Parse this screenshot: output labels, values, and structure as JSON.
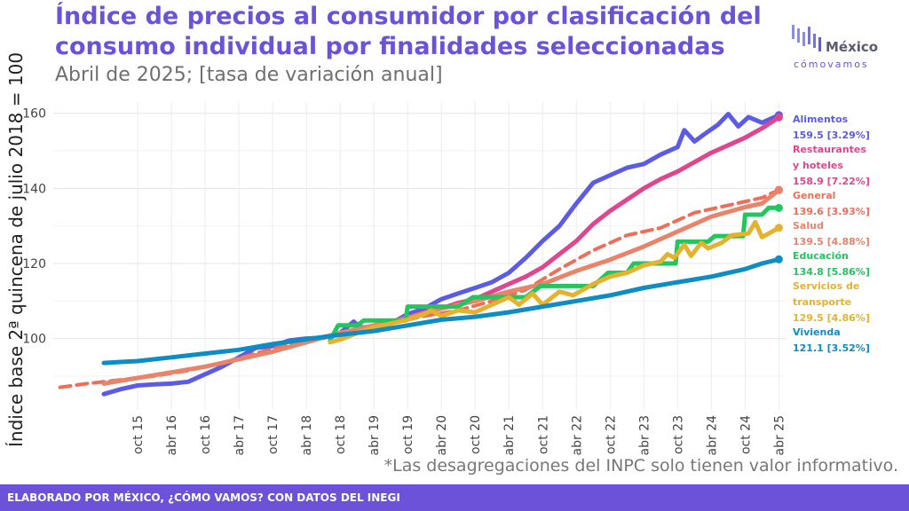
{
  "title": "Índice de precios al consumidor por clasificación del consumo individual por finalidades seleccionadas",
  "subtitle": "Abril de 2025; [tasa de variación anual]",
  "note": "*Las desagregaciones del INPC solo tienen valor informativo.",
  "footer": "ELABORADO POR MÉXICO, ¿CÓMO VAMOS? CON DATOS DEL INEGI",
  "logo": {
    "line1": "México",
    "line2": "cómovamos"
  },
  "chart_data": {
    "type": "line",
    "ylabel": "Índice base 2ª quincena de julio 2018 = 100",
    "ylim": [
      81,
      163
    ],
    "yticks": [
      100,
      120,
      140,
      160
    ],
    "x_range": [
      2014.5,
      2025.35
    ],
    "xticks": [
      {
        "label": "oct 15",
        "x": 2015.75
      },
      {
        "label": "abr 16",
        "x": 2016.25
      },
      {
        "label": "oct 16",
        "x": 2016.75
      },
      {
        "label": "abr 17",
        "x": 2017.25
      },
      {
        "label": "oct 17",
        "x": 2017.75
      },
      {
        "label": "abr 18",
        "x": 2018.25
      },
      {
        "label": "oct 18",
        "x": 2018.75
      },
      {
        "label": "abr 19",
        "x": 2019.25
      },
      {
        "label": "oct 19",
        "x": 2019.75
      },
      {
        "label": "abr 20",
        "x": 2020.25
      },
      {
        "label": "oct 20",
        "x": 2020.75
      },
      {
        "label": "abr 21",
        "x": 2021.25
      },
      {
        "label": "oct 21",
        "x": 2021.75
      },
      {
        "label": "abr 22",
        "x": 2022.25
      },
      {
        "label": "oct 22",
        "x": 2022.75
      },
      {
        "label": "abr 23",
        "x": 2023.25
      },
      {
        "label": "oct 23",
        "x": 2023.75
      },
      {
        "label": "abr 24",
        "x": 2024.25
      },
      {
        "label": "oct 24",
        "x": 2024.75
      },
      {
        "label": "abr 25",
        "x": 2025.25
      }
    ],
    "grid": true,
    "legend": "right",
    "series": [
      {
        "name": "Alimentos",
        "name_lines": [
          "Alimentos"
        ],
        "value_label": "159.5 [3.29%]",
        "color": "#5B5BE6",
        "dashed": false,
        "width": 5,
        "points": [
          [
            2015.25,
            85.2
          ],
          [
            2015.5,
            86.5
          ],
          [
            2015.75,
            87.5
          ],
          [
            2016.0,
            87.8
          ],
          [
            2016.25,
            88.0
          ],
          [
            2016.5,
            88.5
          ],
          [
            2016.75,
            90.5
          ],
          [
            2017.0,
            92.5
          ],
          [
            2017.25,
            95.0
          ],
          [
            2017.5,
            97.5
          ],
          [
            2017.75,
            98.0
          ],
          [
            2018.0,
            99.5
          ],
          [
            2018.25,
            100.0
          ],
          [
            2018.5,
            100.2
          ],
          [
            2018.75,
            101.5
          ],
          [
            2018.95,
            104.5
          ],
          [
            2019.05,
            103.0
          ],
          [
            2019.25,
            103.0
          ],
          [
            2019.5,
            104.0
          ],
          [
            2019.75,
            106.5
          ],
          [
            2020.0,
            108.0
          ],
          [
            2020.25,
            110.5
          ],
          [
            2020.5,
            112.0
          ],
          [
            2020.75,
            113.5
          ],
          [
            2021.0,
            115.0
          ],
          [
            2021.25,
            117.5
          ],
          [
            2021.5,
            121.5
          ],
          [
            2021.75,
            126.0
          ],
          [
            2022.0,
            130.0
          ],
          [
            2022.25,
            136.0
          ],
          [
            2022.5,
            141.5
          ],
          [
            2022.75,
            143.5
          ],
          [
            2023.0,
            145.5
          ],
          [
            2023.25,
            146.5
          ],
          [
            2023.5,
            149.0
          ],
          [
            2023.75,
            151.0
          ],
          [
            2023.85,
            155.5
          ],
          [
            2024.0,
            152.5
          ],
          [
            2024.15,
            154.5
          ],
          [
            2024.35,
            157.0
          ],
          [
            2024.5,
            159.8
          ],
          [
            2024.65,
            156.5
          ],
          [
            2024.8,
            159.0
          ],
          [
            2025.0,
            157.5
          ],
          [
            2025.25,
            159.5
          ]
        ]
      },
      {
        "name": "Restaurantes y hoteles",
        "name_lines": [
          "Restaurantes",
          "y hoteles"
        ],
        "value_label": "158.9 [7.22%]",
        "color": "#E0468E",
        "dashed": false,
        "width": 5,
        "points": [
          [
            2018.75,
            101.0
          ],
          [
            2019.0,
            102.0
          ],
          [
            2019.25,
            103.0
          ],
          [
            2019.5,
            104.5
          ],
          [
            2019.75,
            105.5
          ],
          [
            2020.0,
            107.0
          ],
          [
            2020.25,
            108.0
          ],
          [
            2020.5,
            109.5
          ],
          [
            2020.75,
            110.5
          ],
          [
            2021.0,
            112.5
          ],
          [
            2021.25,
            114.5
          ],
          [
            2021.5,
            116.5
          ],
          [
            2021.75,
            119.0
          ],
          [
            2022.0,
            122.5
          ],
          [
            2022.25,
            126.0
          ],
          [
            2022.5,
            130.5
          ],
          [
            2022.75,
            134.0
          ],
          [
            2023.0,
            137.0
          ],
          [
            2023.25,
            140.0
          ],
          [
            2023.5,
            142.5
          ],
          [
            2023.75,
            144.5
          ],
          [
            2024.0,
            147.0
          ],
          [
            2024.25,
            149.5
          ],
          [
            2024.5,
            151.5
          ],
          [
            2024.75,
            153.5
          ],
          [
            2025.0,
            156.0
          ],
          [
            2025.25,
            158.9
          ]
        ]
      },
      {
        "name": "General",
        "name_lines": [
          "General"
        ],
        "value_label": "139.6 [3.93%]",
        "color": "#EE6E5A",
        "dashed": true,
        "width": 4,
        "points": [
          [
            2014.6,
            87.0
          ],
          [
            2015.0,
            88.0
          ],
          [
            2015.5,
            89.0
          ],
          [
            2016.0,
            90.0
          ],
          [
            2016.5,
            91.5
          ],
          [
            2017.0,
            93.5
          ],
          [
            2017.5,
            96.0
          ],
          [
            2018.0,
            98.5
          ],
          [
            2018.5,
            100.5
          ],
          [
            2019.0,
            102.5
          ],
          [
            2019.5,
            104.0
          ],
          [
            2020.0,
            106.0
          ],
          [
            2020.5,
            107.5
          ],
          [
            2021.0,
            110.0
          ],
          [
            2021.5,
            113.0
          ],
          [
            2022.0,
            118.5
          ],
          [
            2022.5,
            123.5
          ],
          [
            2023.0,
            127.5
          ],
          [
            2023.5,
            129.5
          ],
          [
            2024.0,
            133.5
          ],
          [
            2024.5,
            135.5
          ],
          [
            2025.0,
            137.5
          ],
          [
            2025.25,
            139.6
          ]
        ]
      },
      {
        "name": "Salud",
        "name_lines": [
          "Salud"
        ],
        "value_label": "139.5 [4.88%]",
        "color": "#E8846A",
        "dashed": false,
        "width": 5,
        "points": [
          [
            2015.25,
            88.0
          ],
          [
            2015.75,
            89.5
          ],
          [
            2016.25,
            91.0
          ],
          [
            2016.75,
            92.5
          ],
          [
            2017.25,
            94.5
          ],
          [
            2017.75,
            96.5
          ],
          [
            2018.25,
            99.0
          ],
          [
            2018.75,
            101.5
          ],
          [
            2019.25,
            103.5
          ],
          [
            2019.75,
            105.5
          ],
          [
            2020.25,
            108.0
          ],
          [
            2020.75,
            110.0
          ],
          [
            2021.25,
            112.5
          ],
          [
            2021.75,
            114.5
          ],
          [
            2022.25,
            118.0
          ],
          [
            2022.75,
            121.0
          ],
          [
            2023.25,
            124.5
          ],
          [
            2023.75,
            128.5
          ],
          [
            2024.25,
            132.5
          ],
          [
            2024.75,
            135.0
          ],
          [
            2025.0,
            136.0
          ],
          [
            2025.25,
            139.5
          ]
        ]
      },
      {
        "name": "Educación",
        "name_lines": [
          "Educación"
        ],
        "value_label": "134.8 [5.86%]",
        "color": "#22C55E",
        "dashed": false,
        "width": 5,
        "points": [
          [
            2018.6,
            99.5
          ],
          [
            2018.72,
            103.5
          ],
          [
            2019.0,
            103.5
          ],
          [
            2019.1,
            104.8
          ],
          [
            2019.72,
            104.8
          ],
          [
            2019.75,
            108.5
          ],
          [
            2020.5,
            108.5
          ],
          [
            2020.72,
            111.0
          ],
          [
            2021.5,
            111.0
          ],
          [
            2021.72,
            114.0
          ],
          [
            2022.5,
            114.0
          ],
          [
            2022.72,
            117.5
          ],
          [
            2023.0,
            117.5
          ],
          [
            2023.1,
            120.0
          ],
          [
            2023.72,
            120.0
          ],
          [
            2023.75,
            125.8
          ],
          [
            2024.2,
            125.8
          ],
          [
            2024.3,
            127.3
          ],
          [
            2024.72,
            127.3
          ],
          [
            2024.75,
            133.0
          ],
          [
            2025.0,
            133.0
          ],
          [
            2025.1,
            134.8
          ],
          [
            2025.25,
            134.8
          ]
        ]
      },
      {
        "name": "Servicios de transporte",
        "name_lines": [
          "Servicios de",
          "transporte"
        ],
        "value_label": "129.5 [4.86%]",
        "color": "#E5B22E",
        "dashed": false,
        "width": 5,
        "points": [
          [
            2018.6,
            99.0
          ],
          [
            2018.8,
            100.0
          ],
          [
            2019.0,
            101.5
          ],
          [
            2019.25,
            103.0
          ],
          [
            2019.5,
            104.0
          ],
          [
            2019.75,
            105.0
          ],
          [
            2020.0,
            106.5
          ],
          [
            2020.1,
            107.5
          ],
          [
            2020.25,
            106.0
          ],
          [
            2020.5,
            107.5
          ],
          [
            2020.75,
            107.0
          ],
          [
            2021.0,
            109.0
          ],
          [
            2021.25,
            111.0
          ],
          [
            2021.4,
            109.0
          ],
          [
            2021.6,
            112.0
          ],
          [
            2021.75,
            109.0
          ],
          [
            2022.0,
            112.5
          ],
          [
            2022.2,
            111.5
          ],
          [
            2022.5,
            114.5
          ],
          [
            2022.75,
            116.5
          ],
          [
            2023.0,
            117.5
          ],
          [
            2023.25,
            119.5
          ],
          [
            2023.5,
            120.5
          ],
          [
            2023.6,
            122.5
          ],
          [
            2023.7,
            121.5
          ],
          [
            2023.85,
            125.0
          ],
          [
            2023.95,
            122.0
          ],
          [
            2024.1,
            125.5
          ],
          [
            2024.2,
            124.0
          ],
          [
            2024.4,
            125.5
          ],
          [
            2024.55,
            127.5
          ],
          [
            2024.8,
            128.0
          ],
          [
            2024.9,
            131.0
          ],
          [
            2025.0,
            127.0
          ],
          [
            2025.25,
            129.5
          ]
        ]
      },
      {
        "name": "Vivienda",
        "name_lines": [
          "Vivienda"
        ],
        "value_label": "121.1 [3.52%]",
        "color": "#0E8CC4",
        "dashed": false,
        "width": 5,
        "points": [
          [
            2015.25,
            93.5
          ],
          [
            2015.75,
            94.0
          ],
          [
            2016.25,
            95.0
          ],
          [
            2016.75,
            96.0
          ],
          [
            2017.25,
            97.0
          ],
          [
            2017.75,
            98.5
          ],
          [
            2018.25,
            99.8
          ],
          [
            2018.75,
            101.0
          ],
          [
            2019.25,
            102.0
          ],
          [
            2019.75,
            103.5
          ],
          [
            2020.25,
            105.0
          ],
          [
            2020.75,
            105.8
          ],
          [
            2021.25,
            107.0
          ],
          [
            2021.75,
            108.5
          ],
          [
            2022.25,
            110.0
          ],
          [
            2022.75,
            111.5
          ],
          [
            2023.25,
            113.5
          ],
          [
            2023.75,
            115.0
          ],
          [
            2024.25,
            116.5
          ],
          [
            2024.75,
            118.5
          ],
          [
            2025.0,
            120.0
          ],
          [
            2025.25,
            121.1
          ]
        ]
      }
    ]
  }
}
